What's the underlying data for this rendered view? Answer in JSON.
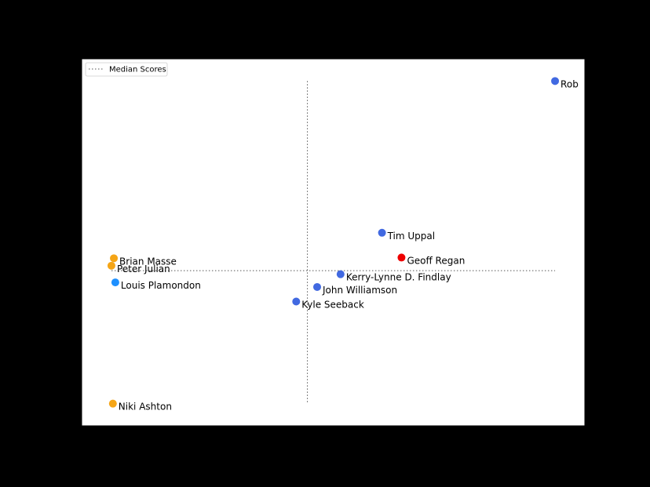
{
  "chart_data": {
    "type": "scatter",
    "title": "",
    "xlabel": "",
    "ylabel": "",
    "xlim": [
      0,
      100
    ],
    "ylim": [
      0,
      100
    ],
    "grid": false,
    "legend": {
      "placement": "top-left",
      "entries": [
        {
          "label": "Median Scores",
          "style": "dotted",
          "color": "#555555"
        }
      ]
    },
    "median": {
      "x": 44.7,
      "y": 42.0
    },
    "median_lines": {
      "x_range": [
        4.5,
        95.5
      ],
      "y_range": [
        4.5,
        95.5
      ]
    },
    "points": [
      {
        "label": "Rob",
        "x": 95.5,
        "y": 95.5,
        "color": "#4169e1"
      },
      {
        "label": "Tim Uppal",
        "x": 60.0,
        "y": 52.7,
        "color": "#4169e1"
      },
      {
        "label": "Geoff Regan",
        "x": 64.0,
        "y": 45.7,
        "color": "#ee0000"
      },
      {
        "label": "Kerry-Lynne D. Findlay",
        "x": 51.5,
        "y": 41.0,
        "color": "#4169e1"
      },
      {
        "label": "John Williamson",
        "x": 46.7,
        "y": 37.4,
        "color": "#4169e1"
      },
      {
        "label": "Kyle Seeback",
        "x": 42.4,
        "y": 33.3,
        "color": "#4169e1"
      },
      {
        "label": "Brian Masse",
        "x": 5.0,
        "y": 45.5,
        "color": "#f5a516"
      },
      {
        "label": "Peter Julian",
        "x": 4.5,
        "y": 43.4,
        "color": "#f5a516"
      },
      {
        "label": "Louis Plamondon",
        "x": 5.3,
        "y": 38.7,
        "color": "#1e90ff"
      },
      {
        "label": "Niki Ashton",
        "x": 4.8,
        "y": 4.5,
        "color": "#f5a516"
      }
    ]
  }
}
